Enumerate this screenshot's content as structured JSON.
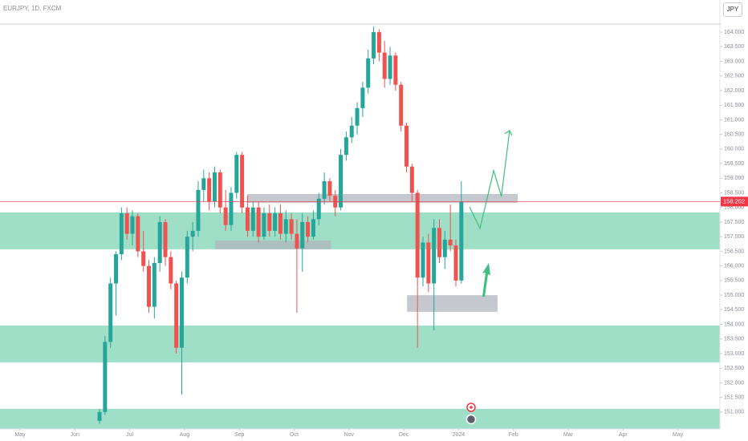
{
  "chart_data": {
    "type": "candlestick",
    "title": "EURJPY, 1D, FXCM",
    "currency": "JPY",
    "ylim": [
      150.42,
      165.1
    ],
    "yticks": [
      {
        "value": 151,
        "label": "151.000"
      },
      {
        "value": 151.5,
        "label": "151.500"
      },
      {
        "value": 152,
        "label": "152.000"
      },
      {
        "value": 152.5,
        "label": "152.500"
      },
      {
        "value": 153,
        "label": "153.000"
      },
      {
        "value": 153.5,
        "label": "153.500"
      },
      {
        "value": 154,
        "label": "154.000"
      },
      {
        "value": 154.5,
        "label": "154.500"
      },
      {
        "value": 155,
        "label": "155.000"
      },
      {
        "value": 155.5,
        "label": "155.500"
      },
      {
        "value": 156,
        "label": "156.000"
      },
      {
        "value": 156.5,
        "label": "156.500"
      },
      {
        "value": 157,
        "label": "157.000"
      },
      {
        "value": 157.5,
        "label": "157.500"
      },
      {
        "value": 158,
        "label": "158.000"
      },
      {
        "value": 158.5,
        "label": "158.500"
      },
      {
        "value": 159,
        "label": "159.000"
      },
      {
        "value": 159.5,
        "label": "159.500"
      },
      {
        "value": 160,
        "label": "160.000"
      },
      {
        "value": 160.5,
        "label": "160.500"
      },
      {
        "value": 161,
        "label": "161.000"
      },
      {
        "value": 161.5,
        "label": "161.500"
      },
      {
        "value": 162,
        "label": "162.000"
      },
      {
        "value": 162.5,
        "label": "162.500"
      },
      {
        "value": 163,
        "label": "163.000"
      },
      {
        "value": 163.5,
        "label": "163.500"
      },
      {
        "value": 164,
        "label": "164.000"
      }
    ],
    "xlim": [
      -0.366,
      12.767
    ],
    "xticks": [
      {
        "value": 0,
        "label": "May"
      },
      {
        "value": 1,
        "label": "Jun"
      },
      {
        "value": 2,
        "label": "Jul"
      },
      {
        "value": 3,
        "label": "Aug"
      },
      {
        "value": 4,
        "label": "Sep"
      },
      {
        "value": 5,
        "label": "Oct"
      },
      {
        "value": 6,
        "label": "Nov"
      },
      {
        "value": 7,
        "label": "Dec"
      },
      {
        "value": 8,
        "label": "2024"
      },
      {
        "value": 9,
        "label": "Feb"
      },
      {
        "value": 10,
        "label": "Mar"
      },
      {
        "value": 11,
        "label": "Apr"
      },
      {
        "value": 12,
        "label": "May"
      }
    ],
    "up_color": "#26a69a",
    "down_color": "#ef5350",
    "candles": {
      "x": [
        1.45,
        1.55,
        1.65,
        1.75,
        1.85,
        1.95,
        2.05,
        2.15,
        2.25,
        2.35,
        2.45,
        2.55,
        2.65,
        2.75,
        2.85,
        2.95,
        3.05,
        3.15,
        3.25,
        3.35,
        3.45,
        3.55,
        3.65,
        3.75,
        3.85,
        3.95,
        4.05,
        4.15,
        4.25,
        4.35,
        4.45,
        4.55,
        4.65,
        4.75,
        4.85,
        4.95,
        5.05,
        5.15,
        5.25,
        5.35,
        5.45,
        5.55,
        5.65,
        5.75,
        5.85,
        5.95,
        6.05,
        6.15,
        6.25,
        6.35,
        6.45,
        6.55,
        6.65,
        6.75,
        6.85,
        6.95,
        7.05,
        7.15,
        7.25,
        7.35,
        7.45,
        7.55,
        7.65,
        7.75,
        7.85,
        7.95,
        8.05
      ],
      "open": [
        150.7,
        151.0,
        153.4,
        155.4,
        156.4,
        157.8,
        157.1,
        157.7,
        156.5,
        156.0,
        154.6,
        156.1,
        157.5,
        156.3,
        155.4,
        153.2,
        155.6,
        157.0,
        157.2,
        158.6,
        159.0,
        158.2,
        159.2,
        158.0,
        157.4,
        158.5,
        159.8,
        158.0,
        157.2,
        158.0,
        157.0,
        157.8,
        157.2,
        157.8,
        157.1,
        157.6,
        157.1,
        156.6,
        157.5,
        157.0,
        157.6,
        158.3,
        158.9,
        158.4,
        158.0,
        159.8,
        160.4,
        160.8,
        161.4,
        162.1,
        163.1,
        164.0,
        163.3,
        162.4,
        163.2,
        162.2,
        160.8,
        159.4,
        158.5,
        155.6,
        156.8,
        155.4,
        157.3,
        156.3,
        156.9,
        156.7,
        155.5
      ],
      "high": [
        151.1,
        153.6,
        155.6,
        156.5,
        158.0,
        158.0,
        157.9,
        157.8,
        157.2,
        156.2,
        156.3,
        157.7,
        157.6,
        156.5,
        155.5,
        155.8,
        157.2,
        157.5,
        158.9,
        159.3,
        159.2,
        159.4,
        159.3,
        158.6,
        158.7,
        159.9,
        159.9,
        158.4,
        158.2,
        158.2,
        158.0,
        158.1,
        158.0,
        158.1,
        157.9,
        157.8,
        157.6,
        157.8,
        157.7,
        157.9,
        158.5,
        159.2,
        159.0,
        158.6,
        160.0,
        160.6,
        161.1,
        161.6,
        162.3,
        163.4,
        164.2,
        164.1,
        163.7,
        163.5,
        163.3,
        162.3,
        160.9,
        159.5,
        158.6,
        157.0,
        157.1,
        157.6,
        157.6,
        157.2,
        158.1,
        156.9,
        158.9
      ],
      "low": [
        150.6,
        150.9,
        153.2,
        154.3,
        156.2,
        156.9,
        156.7,
        156.3,
        155.8,
        154.4,
        154.2,
        155.8,
        156.0,
        155.2,
        153.0,
        151.6,
        155.4,
        156.5,
        157.0,
        158.2,
        157.9,
        158.0,
        157.8,
        157.2,
        157.2,
        158.3,
        157.8,
        157.0,
        157.0,
        156.8,
        156.9,
        157.0,
        157.0,
        156.9,
        156.8,
        156.9,
        154.4,
        155.8,
        156.8,
        156.9,
        157.4,
        158.1,
        158.2,
        157.7,
        157.9,
        159.6,
        160.2,
        160.5,
        161.1,
        161.9,
        162.9,
        163.0,
        162.1,
        162.2,
        162.0,
        160.6,
        159.2,
        158.2,
        153.2,
        155.3,
        155.1,
        153.8,
        156.1,
        155.9,
        156.5,
        155.3,
        155.4
      ],
      "close": [
        151.0,
        153.4,
        155.4,
        156.4,
        157.8,
        157.1,
        157.7,
        156.5,
        156.0,
        154.6,
        156.1,
        157.5,
        156.3,
        155.4,
        153.2,
        155.6,
        157.0,
        157.2,
        158.6,
        159.0,
        158.2,
        159.2,
        158.0,
        157.4,
        158.5,
        159.8,
        158.0,
        157.2,
        158.0,
        157.0,
        157.8,
        157.2,
        157.8,
        157.1,
        157.6,
        157.1,
        156.6,
        157.5,
        157.0,
        157.6,
        158.3,
        158.9,
        158.4,
        158.0,
        159.8,
        160.4,
        160.8,
        161.4,
        162.1,
        163.1,
        164.0,
        163.3,
        162.4,
        163.2,
        162.2,
        160.8,
        159.4,
        158.5,
        155.6,
        156.8,
        155.4,
        157.3,
        156.3,
        156.9,
        156.7,
        155.5,
        158.2
      ]
    },
    "last_price": 158.202,
    "last_price_color": "#f23645",
    "zones": [
      {
        "y": [
          156.57,
          157.83
        ],
        "color": "#8fd9bd"
      },
      {
        "y": [
          152.7,
          153.96
        ],
        "color": "#8fd9bd"
      },
      {
        "y": [
          150.42,
          151.11
        ],
        "color": "#8fd9bd"
      },
      {
        "x": [
          4.14,
          9.08
        ],
        "y": [
          158.16,
          158.46
        ],
        "color": "#b2b5be"
      },
      {
        "x": [
          3.56,
          5.67
        ],
        "y": [
          156.57,
          156.87
        ],
        "color": "#b2b5be"
      },
      {
        "x": [
          7.06,
          8.71
        ],
        "y": [
          154.43,
          155.0
        ],
        "color": "#b2b5be"
      }
    ],
    "projection": {
      "x": [
        8.2,
        8.39,
        8.64,
        8.78,
        8.93
      ],
      "y": [
        158.02,
        157.28,
        159.26,
        158.38,
        160.63
      ],
      "color": "#3fbf7f"
    }
  }
}
